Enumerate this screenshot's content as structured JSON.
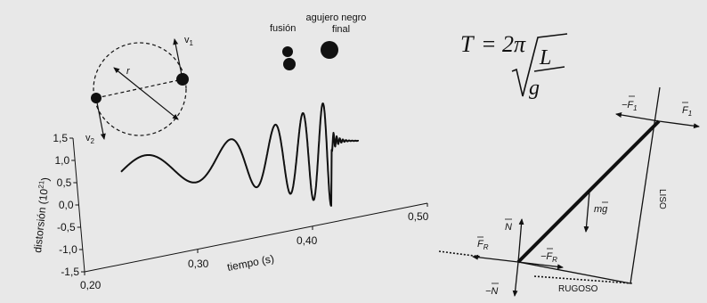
{
  "orbit": {
    "radius_label": "r",
    "v1_label": "v",
    "v1_sub": "1",
    "v2_label": "v",
    "v2_sub": "2"
  },
  "merger": {
    "fusion_label": "fusión",
    "black_hole_line1": "agujero negro",
    "black_hole_line2": "final"
  },
  "formula": {
    "lhs": "T",
    "eq": "= 2π",
    "numerator": "L",
    "denominator": "g"
  },
  "chart_data": {
    "type": "line",
    "ylabel": "distorsión (10",
    "ylabel_exp": "21",
    "ylabel_end": ")",
    "xlabel": "tiempo (s)",
    "y_ticks": [
      "1,5",
      "1,0",
      "0,5",
      "0,0",
      "-0,5",
      "-1,0",
      "-1,5"
    ],
    "x_ticks": [
      "0,20",
      "0,30",
      "0,40",
      "0,50"
    ],
    "ylim": [
      -1.5,
      1.5
    ],
    "xlim": [
      0.2,
      0.5
    ]
  },
  "ladder": {
    "minus_f1": "−F",
    "minus_f1_sub": "1",
    "f1": "F",
    "f1_sub": "1",
    "weight": "mg",
    "smooth_wall": "LISO",
    "normal": "N",
    "minus_normal": "−N",
    "friction": "F",
    "friction_sub": "R",
    "minus_friction": "−F",
    "minus_friction_sub": "R",
    "rough_floor": "RUGOSO"
  }
}
